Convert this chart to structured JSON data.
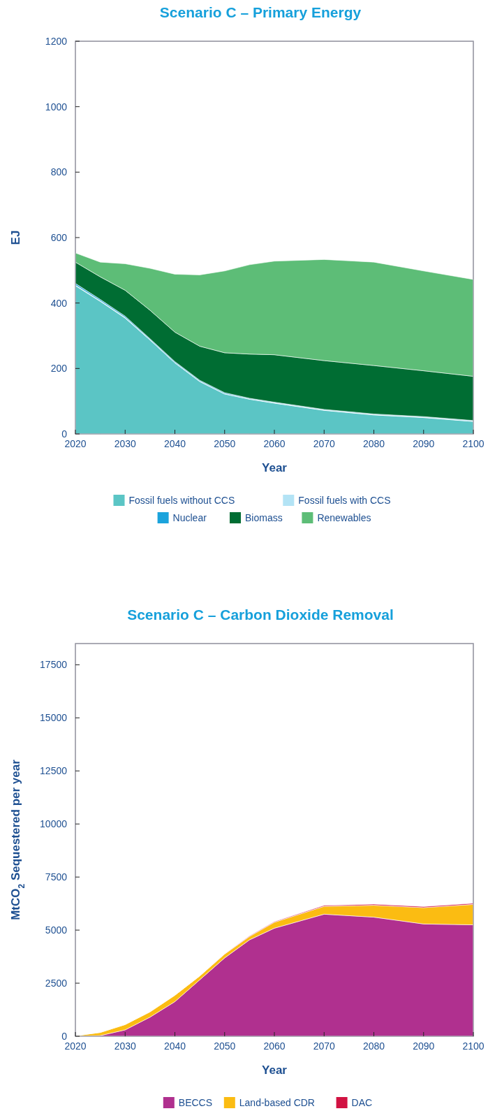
{
  "chart_data": [
    {
      "type": "area",
      "title": "Scenario C – Primary Energy",
      "xlabel": "Year",
      "ylabel": "EJ",
      "stacked": true,
      "legend": "bottom",
      "x": [
        2020,
        2025,
        2030,
        2035,
        2040,
        2045,
        2050,
        2055,
        2060,
        2070,
        2080,
        2090,
        2100
      ],
      "xlim": [
        2020,
        2100
      ],
      "xticks": [
        2020,
        2030,
        2040,
        2050,
        2060,
        2070,
        2080,
        2090,
        2100
      ],
      "ylim": [
        0,
        1200
      ],
      "yticks": [
        0,
        200,
        400,
        600,
        800,
        1000,
        1200
      ],
      "series": [
        {
          "name": "Fossil fuels without CCS",
          "color": "#5bc5c5",
          "values": [
            453,
            405,
            354,
            287,
            217,
            160,
            122,
            106,
            94,
            72,
            58,
            50,
            38
          ]
        },
        {
          "name": "Fossil fuels with CCS",
          "color": "#b3e3f5",
          "values": [
            2,
            2,
            2,
            1,
            1,
            1,
            1,
            1,
            1,
            1,
            1,
            1,
            1
          ]
        },
        {
          "name": "Nuclear",
          "color": "#1ba3dc",
          "values": [
            5,
            4,
            4,
            3,
            3,
            3,
            3,
            2,
            2,
            2,
            2,
            2,
            2
          ]
        },
        {
          "name": "Biomass",
          "color": "#006d33",
          "values": [
            65,
            69,
            79,
            87,
            90,
            104,
            122,
            135,
            145,
            149,
            148,
            140,
            135
          ]
        },
        {
          "name": "Renewables",
          "color": "#5dbd77",
          "values": [
            28,
            45,
            81,
            128,
            177,
            218,
            250,
            273,
            286,
            309,
            316,
            305,
            296
          ]
        }
      ]
    },
    {
      "type": "area",
      "title": "Scenario C – Carbon Dioxide Removal",
      "xlabel": "Year",
      "ylabel": "MtCO$_{2}$ Sequestered per year",
      "stacked": true,
      "legend": "bottom",
      "x": [
        2020,
        2025,
        2030,
        2035,
        2040,
        2045,
        2050,
        2055,
        2060,
        2070,
        2080,
        2090,
        2100
      ],
      "xlim": [
        2020,
        2100
      ],
      "xticks": [
        2020,
        2030,
        2040,
        2050,
        2060,
        2070,
        2080,
        2090,
        2100
      ],
      "ylim": [
        0,
        18500
      ],
      "yticks": [
        0,
        2500,
        5000,
        7500,
        10000,
        12500,
        15000,
        17500
      ],
      "series": [
        {
          "name": "BECCS",
          "color": "#b0308f",
          "values": [
            0,
            30,
            300,
            900,
            1630,
            2660,
            3690,
            4540,
            5090,
            5750,
            5610,
            5290,
            5250
          ]
        },
        {
          "name": "Land-based CDR",
          "color": "#fbbc12",
          "values": [
            20,
            150,
            250,
            250,
            300,
            180,
            180,
            160,
            280,
            370,
            560,
            770,
            960
          ]
        },
        {
          "name": "DAC",
          "color": "#d11242",
          "values": [
            0,
            0,
            0,
            0,
            0,
            0,
            10,
            20,
            30,
            40,
            50,
            50,
            50
          ]
        }
      ]
    }
  ]
}
